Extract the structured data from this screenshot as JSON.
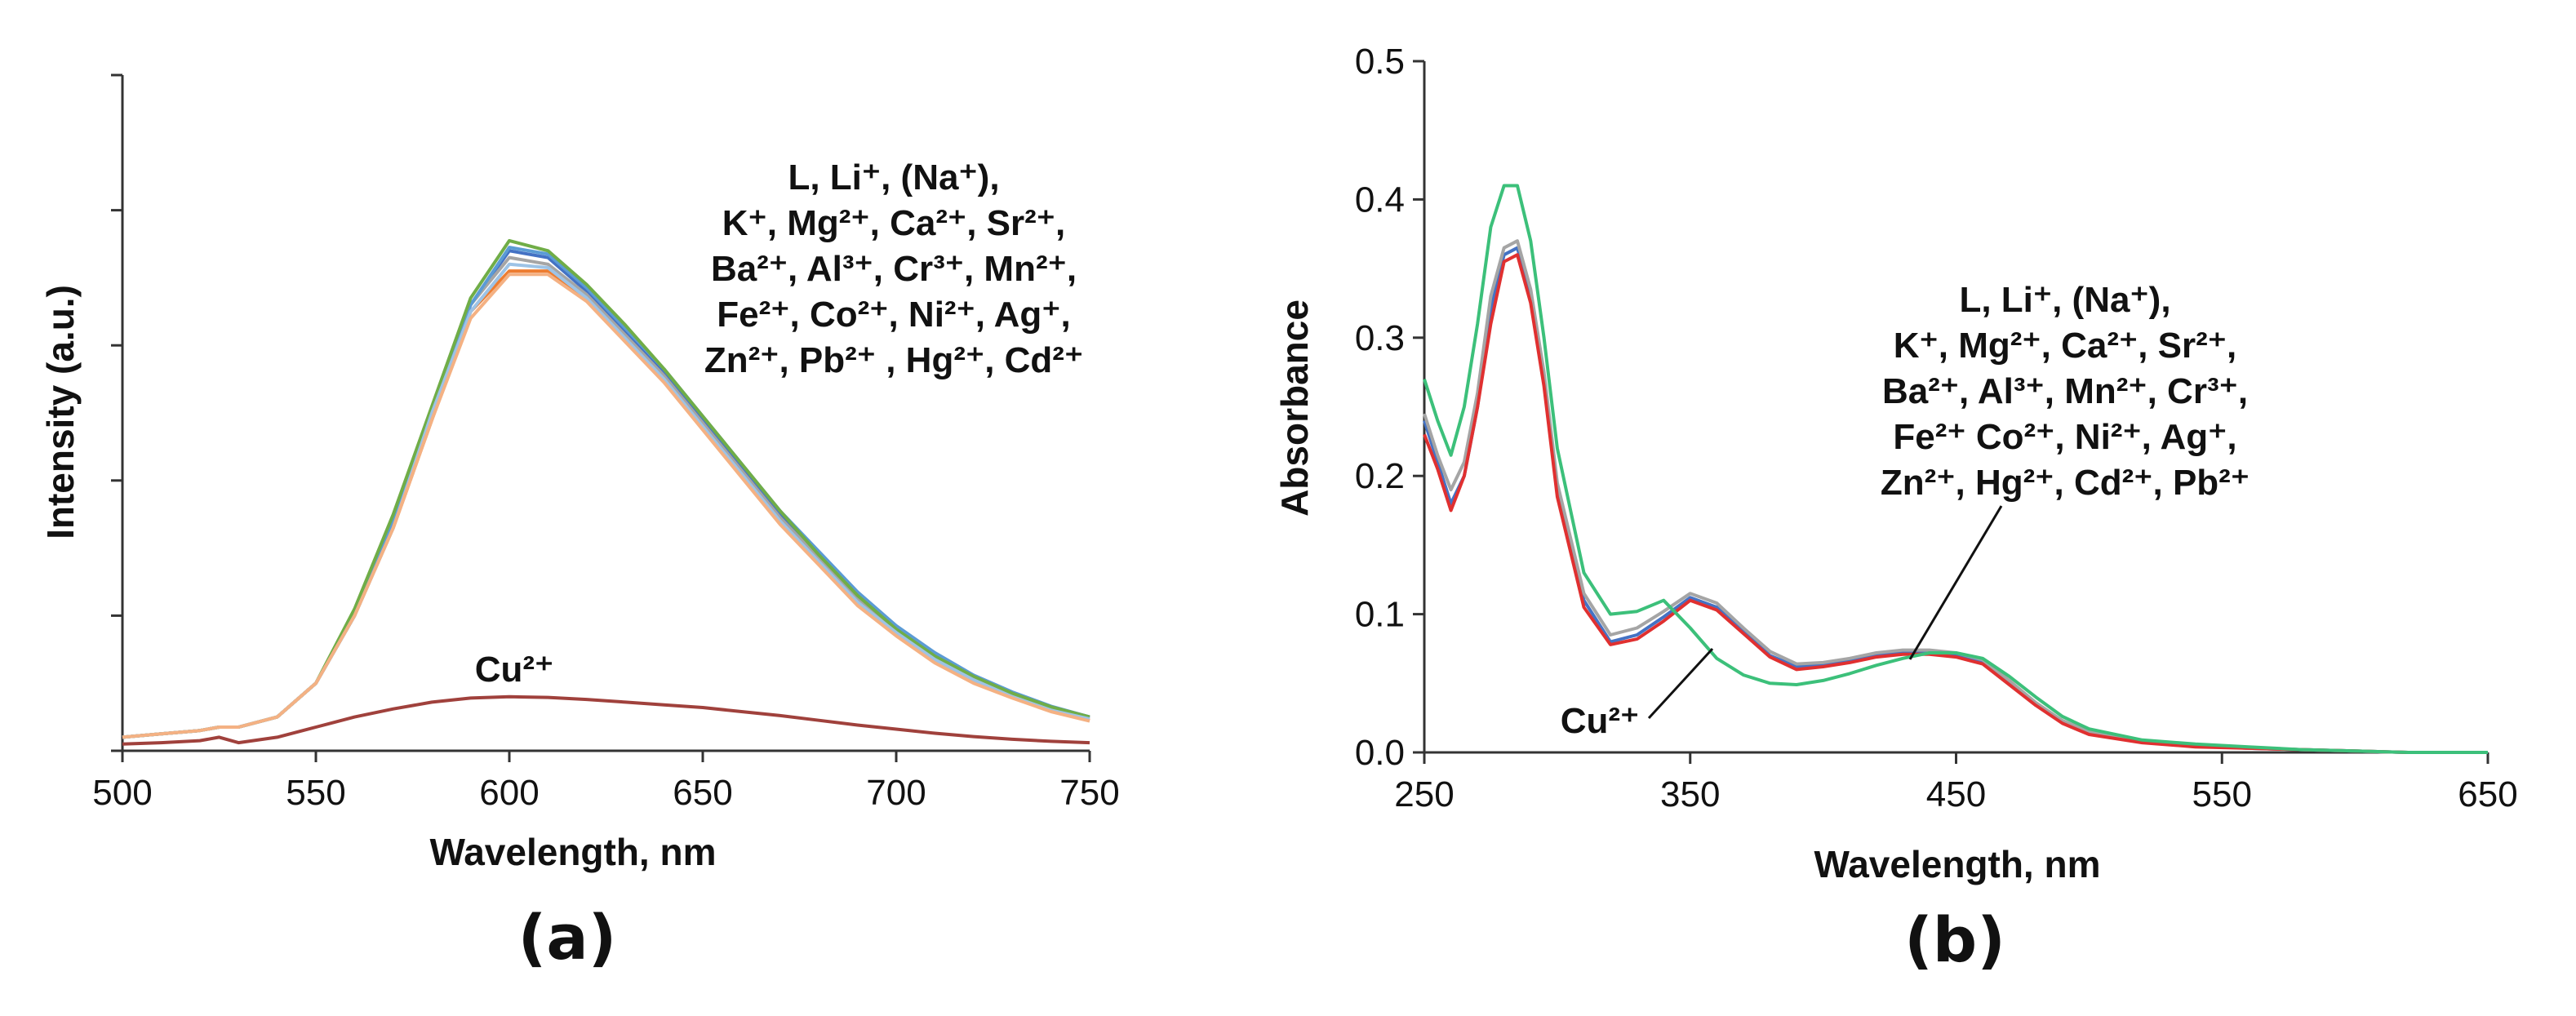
{
  "chart_data": [
    {
      "panel": "(a)",
      "type": "line",
      "xlabel": "Wavelength, nm",
      "ylabel": "Intensity (a.u.)",
      "xlim": [
        500,
        750
      ],
      "ylim": [
        0,
        1
      ],
      "xticks": [
        "500",
        "550",
        "600",
        "650",
        "700",
        "750"
      ],
      "x": [
        500,
        510,
        520,
        525,
        530,
        540,
        550,
        560,
        570,
        580,
        590,
        600,
        610,
        620,
        630,
        640,
        650,
        660,
        670,
        680,
        690,
        700,
        710,
        720,
        730,
        740,
        750
      ],
      "series": [
        {
          "name": "L",
          "color": "#4472c4",
          "values": [
            0.02,
            0.025,
            0.03,
            0.035,
            0.035,
            0.05,
            0.1,
            0.2,
            0.34,
            0.5,
            0.66,
            0.74,
            0.73,
            0.68,
            0.62,
            0.56,
            0.49,
            0.42,
            0.35,
            0.29,
            0.23,
            0.18,
            0.14,
            0.11,
            0.085,
            0.065,
            0.05
          ]
        },
        {
          "name": "Li+",
          "color": "#ed7d31",
          "values": [
            0.02,
            0.025,
            0.03,
            0.035,
            0.035,
            0.05,
            0.1,
            0.2,
            0.33,
            0.49,
            0.65,
            0.71,
            0.71,
            0.67,
            0.61,
            0.55,
            0.48,
            0.41,
            0.34,
            0.28,
            0.22,
            0.175,
            0.135,
            0.105,
            0.08,
            0.06,
            0.045
          ]
        },
        {
          "name": "K+",
          "color": "#a5a5a5",
          "values": [
            0.02,
            0.025,
            0.03,
            0.035,
            0.035,
            0.05,
            0.1,
            0.2,
            0.34,
            0.5,
            0.66,
            0.73,
            0.72,
            0.675,
            0.615,
            0.555,
            0.485,
            0.415,
            0.345,
            0.285,
            0.225,
            0.178,
            0.138,
            0.108,
            0.083,
            0.063,
            0.048
          ]
        },
        {
          "name": "Mg2+",
          "color": "#5b9bd5",
          "values": [
            0.02,
            0.025,
            0.03,
            0.035,
            0.035,
            0.05,
            0.1,
            0.2,
            0.34,
            0.5,
            0.66,
            0.745,
            0.735,
            0.685,
            0.625,
            0.565,
            0.495,
            0.425,
            0.355,
            0.295,
            0.235,
            0.185,
            0.145,
            0.112,
            0.087,
            0.066,
            0.05
          ]
        },
        {
          "name": "Ca2+",
          "color": "#70ad47",
          "values": [
            0.02,
            0.025,
            0.03,
            0.035,
            0.035,
            0.05,
            0.1,
            0.21,
            0.35,
            0.51,
            0.67,
            0.755,
            0.74,
            0.69,
            0.63,
            0.565,
            0.495,
            0.425,
            0.355,
            0.29,
            0.23,
            0.18,
            0.14,
            0.11,
            0.085,
            0.065,
            0.05
          ]
        },
        {
          "name": "Ni2+",
          "color": "#9dc3e6",
          "values": [
            0.02,
            0.025,
            0.03,
            0.035,
            0.035,
            0.05,
            0.1,
            0.2,
            0.33,
            0.5,
            0.65,
            0.72,
            0.715,
            0.67,
            0.61,
            0.55,
            0.48,
            0.41,
            0.34,
            0.28,
            0.22,
            0.175,
            0.135,
            0.105,
            0.08,
            0.06,
            0.047
          ]
        },
        {
          "name": "Hg2+",
          "color": "#f4b183",
          "values": [
            0.02,
            0.025,
            0.03,
            0.035,
            0.035,
            0.05,
            0.1,
            0.2,
            0.33,
            0.49,
            0.64,
            0.705,
            0.705,
            0.665,
            0.605,
            0.545,
            0.475,
            0.405,
            0.335,
            0.275,
            0.215,
            0.17,
            0.13,
            0.1,
            0.078,
            0.058,
            0.044
          ]
        },
        {
          "name": "Cu2+",
          "color": "#a0413c",
          "values": [
            0.01,
            0.012,
            0.015,
            0.02,
            0.012,
            0.02,
            0.035,
            0.05,
            0.062,
            0.072,
            0.078,
            0.08,
            0.079,
            0.076,
            0.072,
            0.068,
            0.064,
            0.058,
            0.052,
            0.045,
            0.038,
            0.032,
            0.026,
            0.021,
            0.017,
            0.014,
            0.012
          ]
        }
      ],
      "legend_lines": [
        "L, Li⁺, (Na⁺),",
        "K⁺, Mg²⁺, Ca²⁺, Sr²⁺,",
        "Ba²⁺,  Al³⁺, Cr³⁺, Mn²⁺,",
        "Fe²⁺, Co²⁺, Ni²⁺, Ag⁺,",
        "Zn²⁺, Pb²⁺ , Hg²⁺, Cd²⁺"
      ],
      "annotation": "Cu²⁺"
    },
    {
      "panel": "(b)",
      "type": "line",
      "xlabel": "Wavelength, nm",
      "ylabel": "Absorbance",
      "xlim": [
        250,
        650
      ],
      "ylim": [
        0,
        0.5
      ],
      "xticks": [
        "250",
        "350",
        "450",
        "550",
        "650"
      ],
      "yticks": [
        "0.0",
        "0.1",
        "0.2",
        "0.3",
        "0.4",
        "0.5"
      ],
      "x": [
        250,
        255,
        260,
        265,
        270,
        275,
        280,
        285,
        290,
        295,
        300,
        310,
        320,
        330,
        340,
        350,
        360,
        370,
        380,
        390,
        400,
        410,
        420,
        430,
        440,
        450,
        460,
        470,
        480,
        490,
        500,
        520,
        540,
        560,
        580,
        600,
        620,
        650
      ],
      "series": [
        {
          "name": "L",
          "color": "#4472c4",
          "values": [
            0.24,
            0.21,
            0.18,
            0.2,
            0.25,
            0.32,
            0.36,
            0.365,
            0.33,
            0.27,
            0.19,
            0.11,
            0.08,
            0.085,
            0.098,
            0.112,
            0.105,
            0.088,
            0.07,
            0.062,
            0.063,
            0.066,
            0.07,
            0.072,
            0.072,
            0.07,
            0.065,
            0.05,
            0.035,
            0.022,
            0.014,
            0.008,
            0.005,
            0.003,
            0.002,
            0.001,
            0.0,
            0.0
          ]
        },
        {
          "name": "Ag+",
          "color": "#a5a5a5",
          "values": [
            0.245,
            0.215,
            0.19,
            0.21,
            0.26,
            0.33,
            0.365,
            0.37,
            0.335,
            0.275,
            0.195,
            0.115,
            0.085,
            0.09,
            0.102,
            0.115,
            0.108,
            0.09,
            0.073,
            0.064,
            0.065,
            0.068,
            0.072,
            0.074,
            0.074,
            0.072,
            0.067,
            0.052,
            0.036,
            0.023,
            0.015,
            0.008,
            0.005,
            0.003,
            0.002,
            0.001,
            0.0,
            0.0
          ]
        },
        {
          "name": "Pb2+",
          "color": "#e03030",
          "values": [
            0.23,
            0.205,
            0.175,
            0.2,
            0.25,
            0.31,
            0.355,
            0.36,
            0.325,
            0.265,
            0.185,
            0.105,
            0.078,
            0.082,
            0.095,
            0.11,
            0.103,
            0.086,
            0.069,
            0.06,
            0.062,
            0.065,
            0.069,
            0.071,
            0.071,
            0.069,
            0.064,
            0.049,
            0.034,
            0.021,
            0.013,
            0.007,
            0.004,
            0.003,
            0.002,
            0.001,
            0.0,
            0.0
          ]
        },
        {
          "name": "Cu2+",
          "color": "#3cc07a",
          "values": [
            0.27,
            0.24,
            0.215,
            0.25,
            0.31,
            0.38,
            0.41,
            0.41,
            0.37,
            0.3,
            0.22,
            0.13,
            0.1,
            0.102,
            0.11,
            0.09,
            0.068,
            0.056,
            0.05,
            0.049,
            0.052,
            0.057,
            0.063,
            0.068,
            0.072,
            0.072,
            0.068,
            0.055,
            0.04,
            0.026,
            0.017,
            0.009,
            0.006,
            0.004,
            0.002,
            0.001,
            0.0,
            0.0
          ]
        }
      ],
      "legend_lines": [
        "L, Li⁺, (Na⁺),",
        "K⁺, Mg²⁺, Ca²⁺, Sr²⁺,",
        "Ba²⁺,  Al³⁺, Mn²⁺, Cr³⁺,",
        "Fe²⁺ Co²⁺, Ni²⁺, Ag⁺,",
        "Zn²⁺, Hg²⁺, Cd²⁺, Pb²⁺"
      ],
      "annotation": "Cu²⁺"
    }
  ]
}
